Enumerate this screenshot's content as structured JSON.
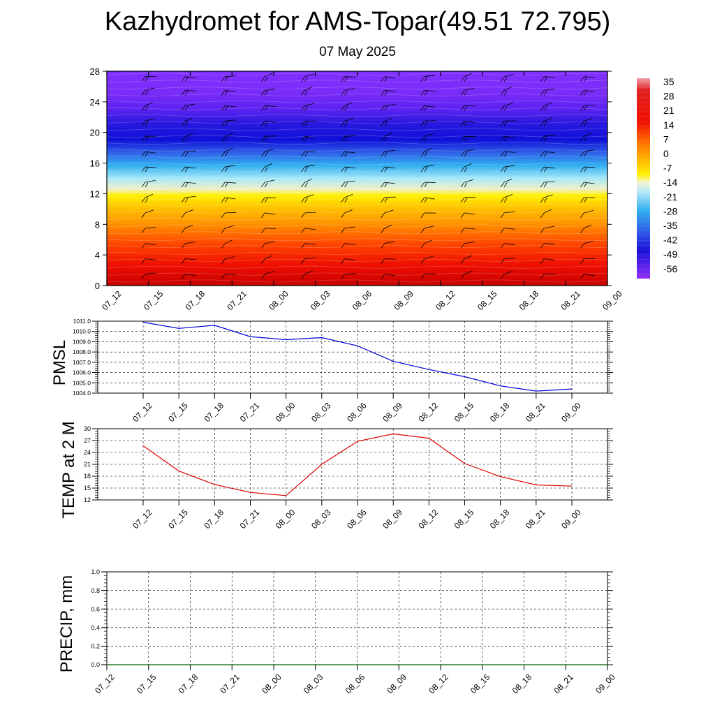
{
  "title": "Kazhydromet for AMS-Topar(49.51 72.795)",
  "subtitle": "07 May 2025",
  "colors": {
    "pmsl_line": "#0000dd",
    "temp_line": "#dd0000",
    "precip_line": "#006400",
    "grid": "#000000"
  },
  "chart_data": [
    {
      "id": "upper_air",
      "type": "heatmap",
      "title": "",
      "xlabel": "",
      "ylabel": "",
      "categories": [
        "07_12",
        "07_15",
        "07_18",
        "07_21",
        "08_00",
        "08_03",
        "08_06",
        "08_09",
        "08_12",
        "08_15",
        "08_18",
        "08_21",
        "09_00"
      ],
      "ylim": [
        0,
        28
      ],
      "yticks": [
        0,
        4,
        8,
        12,
        16,
        20,
        24,
        28
      ],
      "colorbar": {
        "labels": [
          "35",
          "28",
          "21",
          "14",
          "7",
          "0",
          "-7",
          "-14",
          "-21",
          "-28",
          "-35",
          "-42",
          "-49",
          "-56"
        ]
      },
      "overlay": "wind barbs"
    },
    {
      "id": "pmsl",
      "type": "line",
      "ylabel": "PMSL",
      "categories": [
        "07_12",
        "07_15",
        "07_18",
        "07_21",
        "08_00",
        "08_03",
        "08_06",
        "08_09",
        "08_12",
        "08_15",
        "08_18",
        "08_21",
        "09_00"
      ],
      "ylim": [
        1004.0,
        1011.0
      ],
      "yticks": [
        "1004.0",
        "1005.0",
        "1006.0",
        "1007.0",
        "1008.0",
        "1009.0",
        "1010.0",
        "1011.0"
      ],
      "series": [
        {
          "values": [
            1010.9,
            1010.3,
            1010.6,
            1009.5,
            1009.2,
            1009.4,
            1008.6,
            1007.1,
            1006.3,
            1005.6,
            1004.7,
            1004.2,
            1004.4
          ]
        }
      ]
    },
    {
      "id": "temp2m",
      "type": "line",
      "ylabel": "TEMP at 2 M",
      "categories": [
        "07_12",
        "07_15",
        "07_18",
        "07_21",
        "08_00",
        "08_03",
        "08_06",
        "08_09",
        "08_12",
        "08_15",
        "08_18",
        "08_21",
        "09_00"
      ],
      "ylim": [
        12,
        30
      ],
      "yticks": [
        "12",
        "15",
        "18",
        "21",
        "24",
        "27",
        "30"
      ],
      "series": [
        {
          "values": [
            25.7,
            19.3,
            15.9,
            13.9,
            13.1,
            21.0,
            26.8,
            28.7,
            27.6,
            21.2,
            17.9,
            15.8,
            15.5
          ]
        }
      ]
    },
    {
      "id": "precip",
      "type": "line",
      "ylabel": "PRECIP, mm",
      "categories": [
        "07_12",
        "07_15",
        "07_18",
        "07_21",
        "08_00",
        "08_03",
        "08_06",
        "08_09",
        "08_12",
        "08_15",
        "08_18",
        "08_21",
        "09_00"
      ],
      "ylim": [
        0.0,
        1.0
      ],
      "yticks": [
        "0.0",
        "0.2",
        "0.4",
        "0.6",
        "0.8",
        "1.0"
      ],
      "series": [
        {
          "values": [
            0,
            0,
            0,
            0,
            0,
            0,
            0,
            0,
            0,
            0,
            0,
            0,
            0
          ]
        }
      ]
    }
  ]
}
